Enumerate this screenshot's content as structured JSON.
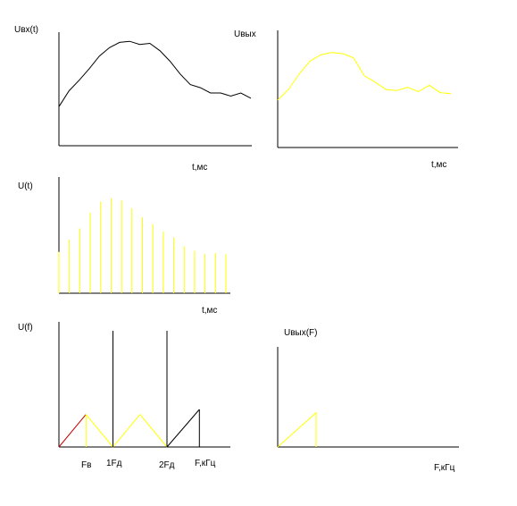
{
  "colors": {
    "axis": "#000000",
    "input_signal": "#000000",
    "output_signal": "#ffff00",
    "sample": "#ffff00",
    "spectrum_yellow": "#ffff00",
    "spectrum_black": "#000000",
    "spectrum_red": "#cc0000",
    "fb_label": "#cc0000"
  },
  "panels": {
    "input_signal": {
      "ylabel": "Uвх(t)",
      "xlabel": "t,мс"
    },
    "output_signal": {
      "ylabel": "Uвых",
      "xlabel": "t,мс"
    },
    "sampled_signal": {
      "ylabel": "U(t)",
      "xlabel": "t,мс"
    },
    "input_spectrum": {
      "ylabel": "U(f)",
      "ticks": {
        "fb": "Fв",
        "fd1": "1Fд",
        "fd2": "2Fд",
        "f_axis": "F,кГц"
      }
    },
    "output_spectrum": {
      "ylabel": "Uвых(F)",
      "xlabel": "F,кГц"
    }
  },
  "chart_data": [
    {
      "type": "line",
      "panel": "input_signal",
      "ylabel": "Uвх(t)",
      "xlabel": "t,мс",
      "series": [
        {
          "values": [
            0.37,
            0.52,
            0.62,
            0.73,
            0.85,
            0.93,
            0.98,
            0.99,
            0.96,
            0.97,
            0.9,
            0.8,
            0.68,
            0.58,
            0.55,
            0.5,
            0.5,
            0.47,
            0.5,
            0.45
          ]
        }
      ]
    },
    {
      "type": "line",
      "panel": "output_signal",
      "ylabel": "Uвых",
      "xlabel": "t,мс",
      "series": [
        {
          "values": [
            0.45,
            0.55,
            0.7,
            0.82,
            0.88,
            0.9,
            0.89,
            0.85,
            0.68,
            0.62,
            0.55,
            0.54,
            0.57,
            0.53,
            0.59,
            0.52,
            0.51
          ]
        }
      ]
    },
    {
      "type": "bar",
      "panel": "sampled_signal",
      "ylabel": "U(t)",
      "xlabel": "t,мс",
      "values": [
        0.37,
        0.48,
        0.58,
        0.72,
        0.82,
        0.85,
        0.83,
        0.76,
        0.68,
        0.62,
        0.55,
        0.5,
        0.42,
        0.38,
        0.35,
        0.36,
        0.35
      ]
    },
    {
      "type": "line",
      "panel": "input_spectrum",
      "ylabel": "U(f)",
      "lobes": [
        {
          "from": 0,
          "peak": 0.5,
          "to": 1.0,
          "height": 0.26,
          "lines": [
            0.5
          ]
        },
        {
          "from": 1.0,
          "peak": 1.5,
          "to": 2.0,
          "height": 0.26,
          "lines": [
            1.0
          ]
        },
        {
          "from": 2.0,
          "peak": 2.6,
          "to": 2.6,
          "height": 0.3,
          "lines": [
            2.0,
            2.6
          ]
        }
      ],
      "ticks": [
        {
          "label": "Fв",
          "x": 0.5
        },
        {
          "label": "1Fд",
          "x": 1.0
        },
        {
          "label": "2Fд",
          "x": 2.0
        },
        {
          "label": "F,кГц",
          "x": 2.6
        }
      ],
      "carriers": [
        {
          "x": 1.0,
          "height": 0.95
        },
        {
          "x": 2.0,
          "height": 0.95
        }
      ]
    },
    {
      "type": "line",
      "panel": "output_spectrum",
      "ylabel": "Uвых(F)",
      "xlabel": "F,кГц",
      "series": [
        {
          "x": [
            0,
            0.5,
            0.5
          ],
          "y": [
            0,
            0.3,
            0
          ]
        }
      ]
    }
  ]
}
